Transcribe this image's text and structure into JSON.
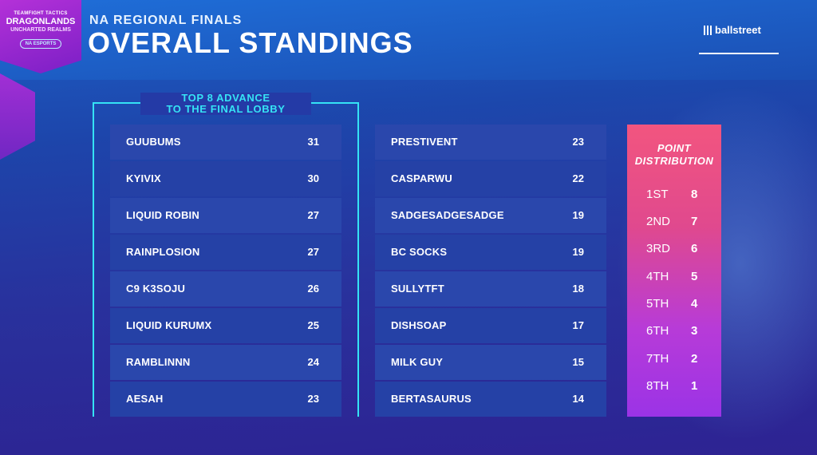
{
  "logo": {
    "line1": "TEAMFIGHT TACTICS",
    "line2": "DRAGONLANDS",
    "line3": "UNCHARTED REALMS",
    "badge": "NA ESPORTS"
  },
  "header": {
    "subtitle": "NA REGIONAL FINALS",
    "title": "OVERALL STANDINGS"
  },
  "sponsor": {
    "name": "ballstreet"
  },
  "advance_label": {
    "line1": "TOP 8 ADVANCE",
    "line2": "TO THE FINAL LOBBY"
  },
  "standings_left": [
    {
      "name": "GUUBUMS",
      "points": "31"
    },
    {
      "name": "KYIVIX",
      "points": "30"
    },
    {
      "name": "LIQUID ROBIN",
      "points": "27"
    },
    {
      "name": "RAINPLOSION",
      "points": "27"
    },
    {
      "name": "C9 K3SOJU",
      "points": "26"
    },
    {
      "name": "LIQUID KURUMX",
      "points": "25"
    },
    {
      "name": "RAMBLINNN",
      "points": "24"
    },
    {
      "name": "AESAH",
      "points": "23"
    }
  ],
  "standings_right": [
    {
      "name": "PRESTIVENT",
      "points": "23"
    },
    {
      "name": "CASPARWU",
      "points": "22"
    },
    {
      "name": "SADGESADGESADGE",
      "points": "19"
    },
    {
      "name": "BC SOCKS",
      "points": "19"
    },
    {
      "name": "SULLYTFT",
      "points": "18"
    },
    {
      "name": "DISHSOAP",
      "points": "17"
    },
    {
      "name": "MILK GUY",
      "points": "15"
    },
    {
      "name": "BERTASAURUS",
      "points": "14"
    }
  ],
  "distribution": {
    "title_line1": "POINT",
    "title_line2": "DISTRIBUTION",
    "rows": [
      {
        "place": "1ST",
        "points": "8"
      },
      {
        "place": "2ND",
        "points": "7"
      },
      {
        "place": "3RD",
        "points": "6"
      },
      {
        "place": "4TH",
        "points": "5"
      },
      {
        "place": "5TH",
        "points": "4"
      },
      {
        "place": "6TH",
        "points": "3"
      },
      {
        "place": "7TH",
        "points": "2"
      },
      {
        "place": "8TH",
        "points": "1"
      }
    ]
  },
  "colors": {
    "accent_cyan": "#35e3f5",
    "row_bg": "#2541a6",
    "distribution_top": "#f2557f",
    "distribution_bottom": "#9b33e6",
    "logo_purple": "#b431d8"
  }
}
